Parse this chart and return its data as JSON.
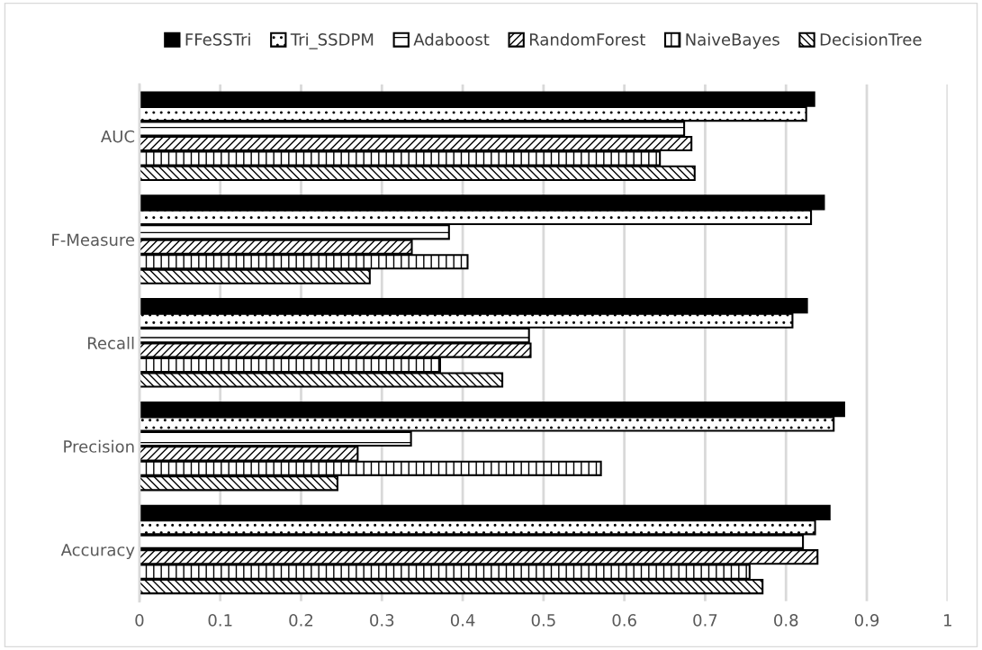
{
  "chart_data": {
    "type": "bar",
    "orientation": "horizontal",
    "categories": [
      "AUC",
      "F-Measure",
      "Recall",
      "Precision",
      "Accuracy"
    ],
    "series": [
      {
        "name": "FFeSSTri",
        "color": "#000000",
        "values": [
          0.835,
          0.847,
          0.826,
          0.872,
          0.854
        ]
      },
      {
        "name": "Tri_SSDPM",
        "color": "#000000",
        "values": [
          0.825,
          0.831,
          0.808,
          0.859,
          0.836
        ]
      },
      {
        "name": "Adaboost",
        "color": "#000000",
        "values": [
          0.674,
          0.383,
          0.482,
          0.336,
          0.821
        ]
      },
      {
        "name": "RandomForest",
        "color": "#000000",
        "values": [
          0.683,
          0.337,
          0.484,
          0.27,
          0.839
        ]
      },
      {
        "name": "NaiveBayes",
        "color": "#000000",
        "values": [
          0.644,
          0.406,
          0.372,
          0.571,
          0.755
        ]
      },
      {
        "name": "DecisionTree",
        "color": "#000000",
        "values": [
          0.687,
          0.285,
          0.449,
          0.245,
          0.771
        ]
      }
    ],
    "xlim": [
      0,
      1
    ],
    "xticks": [
      0,
      0.1,
      0.2,
      0.3,
      0.4,
      0.5,
      0.6,
      0.7,
      0.8,
      0.9,
      1
    ],
    "grid": "x",
    "legend": "top"
  }
}
